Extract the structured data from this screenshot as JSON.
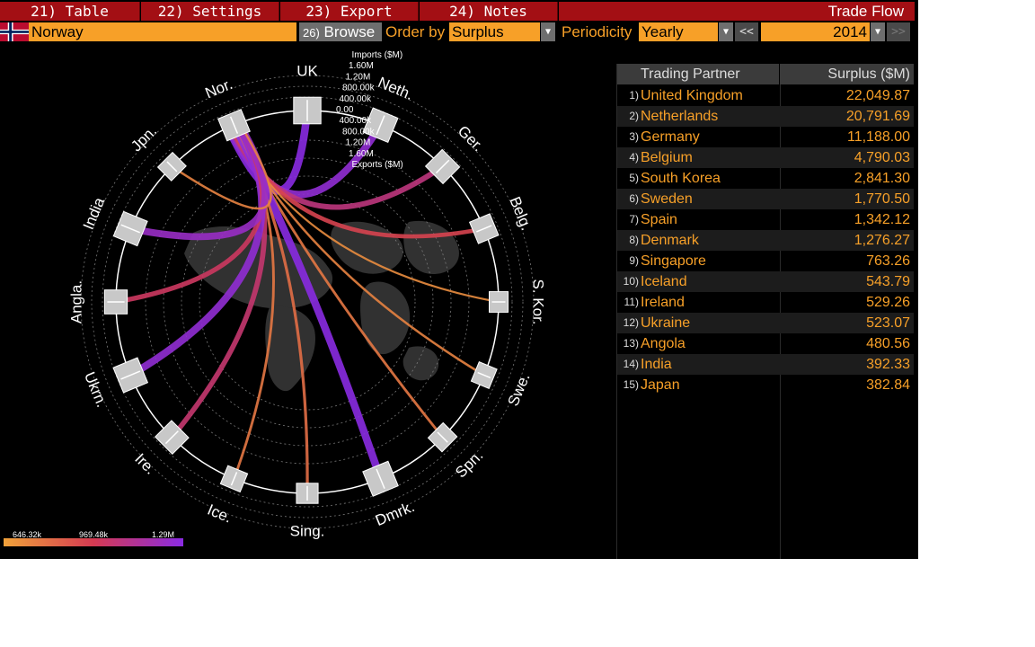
{
  "menu": {
    "items": [
      {
        "label": "21) Table"
      },
      {
        "label": "22) Settings"
      },
      {
        "label": "23) Export"
      },
      {
        "label": "24) Notes"
      }
    ],
    "title": "Trade Flow"
  },
  "toolbar": {
    "country": "Norway",
    "browse_num": "26)",
    "browse_label": "Browse",
    "order_by_label": "Order by",
    "order_by_value": "Surplus",
    "periodicity_label": "Periodicity",
    "periodicity_value": "Yearly",
    "prev_label": "<<",
    "year": "2014",
    "next_label": ">>"
  },
  "colors": {
    "accent_orange": "#f7a028",
    "menu_red": "#a30f14",
    "flow_low": "#f0a23a",
    "flow_mid": "#d43a52",
    "flow_high": "#8a2be2"
  },
  "table": {
    "headers": {
      "partner": "Trading Partner",
      "surplus": "Surplus ($M)"
    },
    "rows": [
      {
        "rank": "1)",
        "partner": "United Kingdom",
        "surplus": "22,049.87"
      },
      {
        "rank": "2)",
        "partner": "Netherlands",
        "surplus": "20,791.69"
      },
      {
        "rank": "3)",
        "partner": "Germany",
        "surplus": "11,188.00"
      },
      {
        "rank": "4)",
        "partner": "Belgium",
        "surplus": "4,790.03"
      },
      {
        "rank": "5)",
        "partner": "South Korea",
        "surplus": "2,841.30"
      },
      {
        "rank": "6)",
        "partner": "Sweden",
        "surplus": "1,770.50"
      },
      {
        "rank": "7)",
        "partner": "Spain",
        "surplus": "1,342.12"
      },
      {
        "rank": "8)",
        "partner": "Denmark",
        "surplus": "1,276.27"
      },
      {
        "rank": "9)",
        "partner": "Singapore",
        "surplus": "763.26"
      },
      {
        "rank": "10)",
        "partner": "Iceland",
        "surplus": "543.79"
      },
      {
        "rank": "11)",
        "partner": "Ireland",
        "surplus": "529.26"
      },
      {
        "rank": "12)",
        "partner": "Ukraine",
        "surplus": "523.07"
      },
      {
        "rank": "13)",
        "partner": "Angola",
        "surplus": "480.56"
      },
      {
        "rank": "14)",
        "partner": "India",
        "surplus": "392.33"
      },
      {
        "rank": "15)",
        "partner": "Japan",
        "surplus": "382.84"
      }
    ]
  },
  "chart": {
    "partners": [
      {
        "label": "UK",
        "flow": 1.0
      },
      {
        "label": "Neth.",
        "flow": 0.95
      },
      {
        "label": "Ger.",
        "flow": 0.65
      },
      {
        "label": "Belg.",
        "flow": 0.45
      },
      {
        "label": "S. Kor.",
        "flow": 0.1
      },
      {
        "label": "Swe.",
        "flow": 0.15
      },
      {
        "label": "Spn.",
        "flow": 0.2
      },
      {
        "label": "Dmrk.",
        "flow": 1.0
      },
      {
        "label": "Sing.",
        "flow": 0.25
      },
      {
        "label": "Ice.",
        "flow": 0.2
      },
      {
        "label": "Ire.",
        "flow": 0.6
      },
      {
        "label": "Ukrn.",
        "flow": 0.95
      },
      {
        "label": "Angla.",
        "flow": 0.55
      },
      {
        "label": "India",
        "flow": 0.9
      },
      {
        "label": "Jpn.",
        "flow": 0.15
      }
    ],
    "home_label": "Nor.",
    "scale_labels": [
      "Imports ($M)",
      "1.60M",
      "1.20M",
      "800.00k",
      "400.00k",
      "0.00",
      "400.00k",
      "800.00k",
      "1.20M",
      "1.60M",
      "Exports ($M)"
    ],
    "legend": {
      "min": "646.32k",
      "mid": "969.48k",
      "max": "1.29M"
    }
  }
}
